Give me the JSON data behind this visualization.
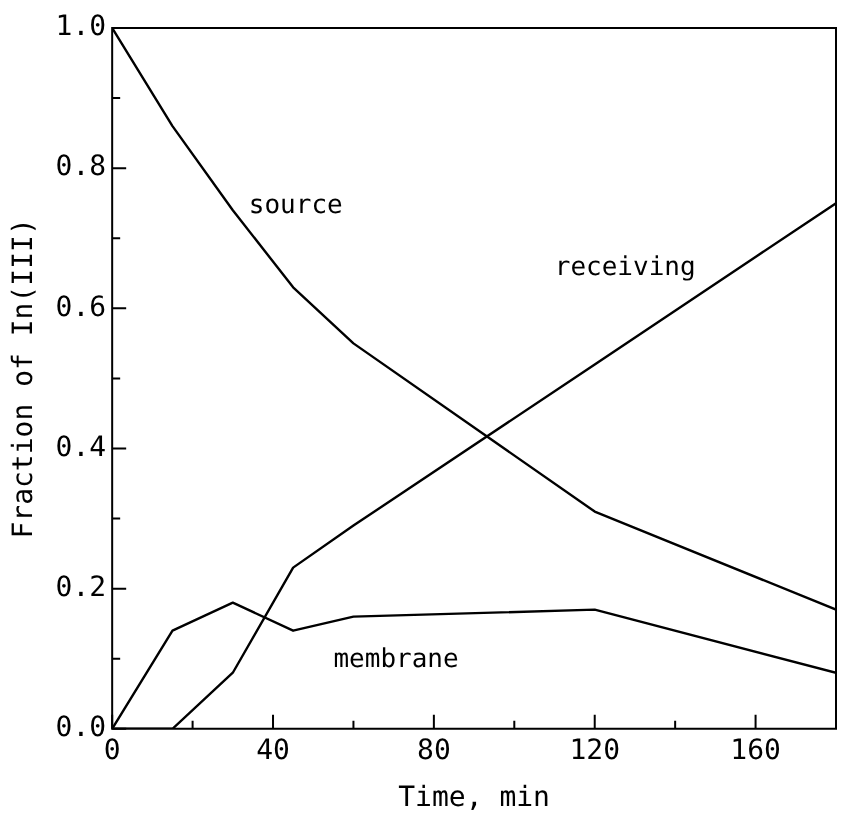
{
  "chart_data": {
    "type": "line",
    "xlabel": "Time, min",
    "ylabel": "Fraction of In(III)",
    "x": [
      0,
      15,
      30,
      45,
      60,
      120,
      180
    ],
    "series": [
      {
        "name": "source",
        "color": "#000000",
        "values": [
          1.0,
          0.86,
          0.74,
          0.63,
          0.55,
          0.31,
          0.17
        ]
      },
      {
        "name": "receiving",
        "color": "#000000",
        "values": [
          0,
          0,
          0.08,
          0.23,
          0.29,
          0.52,
          0.75
        ]
      },
      {
        "name": "membrane",
        "color": "#000000",
        "values": [
          0,
          0.14,
          0.18,
          0.14,
          0.16,
          0.17,
          0.08
        ]
      }
    ],
    "xlim": [
      0,
      180
    ],
    "ylim": [
      0,
      1.0
    ],
    "xticks": [
      0,
      {
        "value": 20,
        "label": null
      },
      40,
      {
        "value": 60,
        "label": null
      },
      80,
      {
        "value": 100,
        "label": null
      },
      120,
      {
        "value": 140,
        "label": null
      },
      160
    ],
    "yticks": [
      {
        "value": 0,
        "label": "0.0"
      },
      {
        "value": 0.1,
        "label": null
      },
      0.2,
      {
        "value": 0.3,
        "label": null
      },
      0.4,
      {
        "value": 0.5,
        "label": null
      },
      0.6,
      {
        "value": 0.7,
        "label": null
      },
      0.8,
      {
        "value": 0.9,
        "label": null
      },
      {
        "value": 1.0,
        "label": "1.0"
      }
    ],
    "grid": false,
    "legend": false,
    "marker": "none",
    "line_style": "solid"
  }
}
